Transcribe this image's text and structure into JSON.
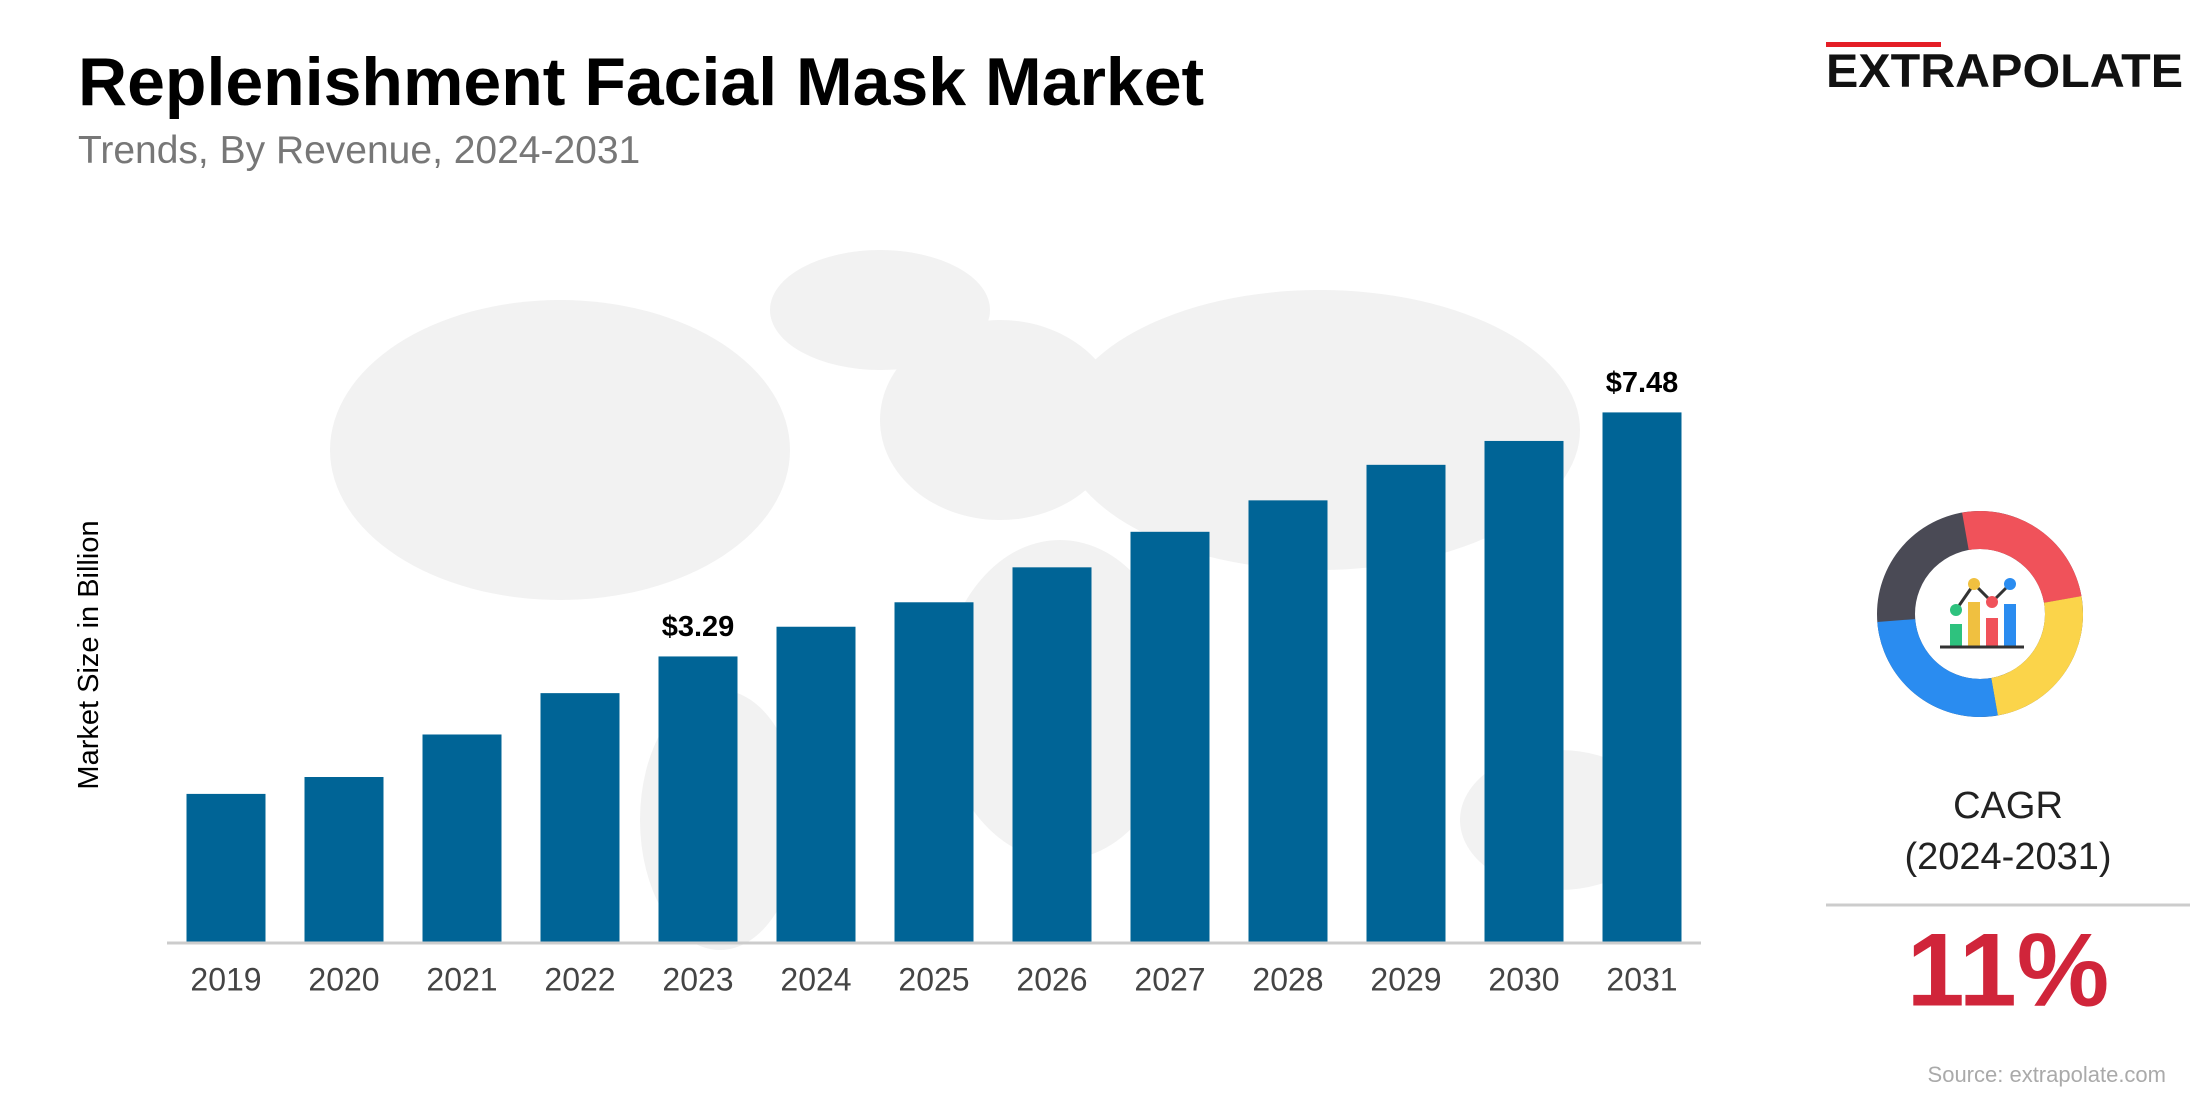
{
  "chart_data": {
    "type": "bar",
    "title": "Replenishment Facial Mask Market",
    "subtitle": "Trends, By Revenue, 2024-2031",
    "y_label": "Market Size in Billion",
    "categories": [
      "2019",
      "2020",
      "2021",
      "2022",
      "2023",
      "2024",
      "2025",
      "2026",
      "2027",
      "2028",
      "2029",
      "2030",
      "2031"
    ],
    "values": [
      0.93,
      1.22,
      1.95,
      2.66,
      3.29,
      3.8,
      4.22,
      4.82,
      5.43,
      5.97,
      6.58,
      6.99,
      7.48
    ],
    "value_labels": [
      null,
      null,
      null,
      null,
      "$3.29",
      null,
      null,
      null,
      null,
      null,
      null,
      null,
      "$7.48"
    ],
    "color": "#006496",
    "ylim": [
      -1.63,
      8.5
    ]
  },
  "brand": "EXTRAPOLATE",
  "cagr": {
    "label": "CAGR",
    "period": "(2024-2031)",
    "value": "11%"
  },
  "source": "Source: extrapolate.com"
}
